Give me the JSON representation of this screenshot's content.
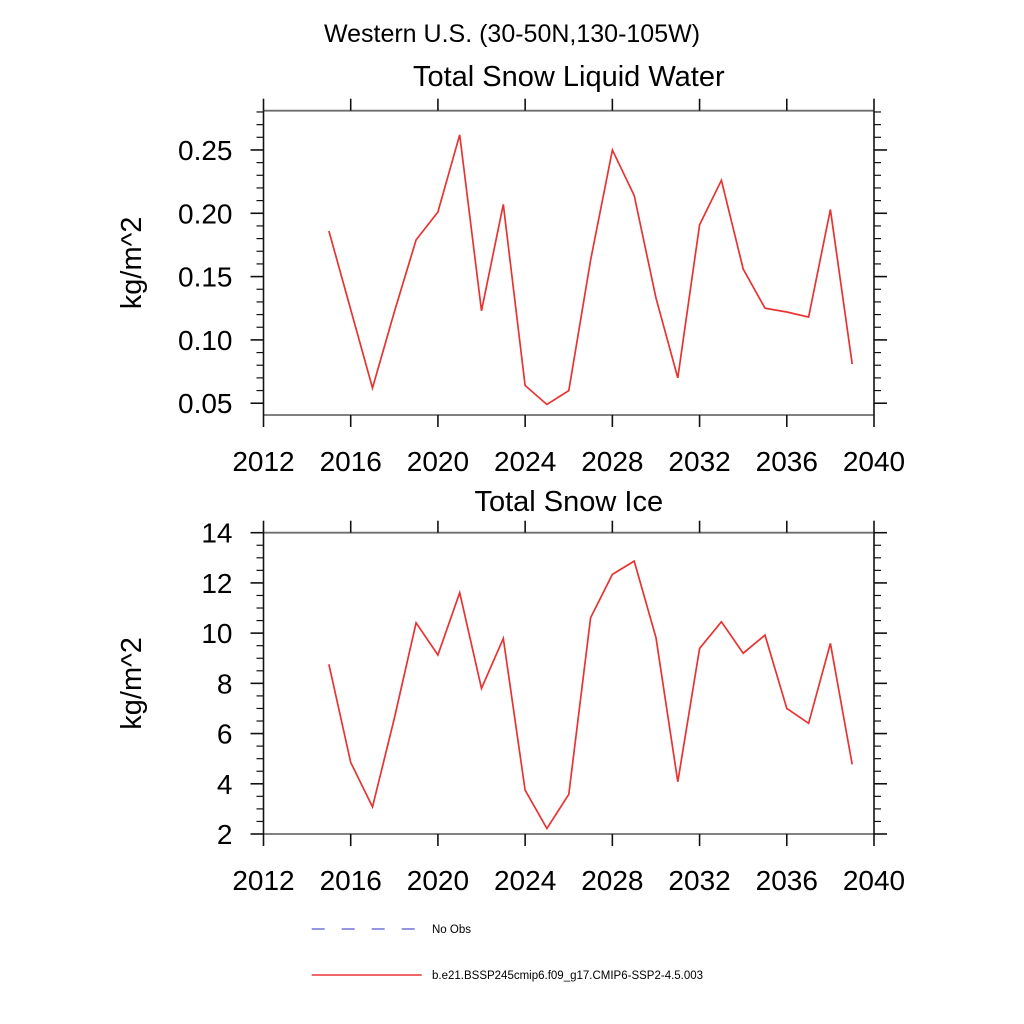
{
  "figure": {
    "main_title": "Western U.S. (30-50N,130-105W)",
    "background": "#ffffff",
    "frame_color": "#6f6f6f",
    "tick_color": "#111111",
    "text_color": "#000000"
  },
  "legend": {
    "items": [
      {
        "label": "No Obs",
        "line_style": "dashed",
        "color": "#7272d9"
      },
      {
        "label": "b.e21.BSSP245cmip6.f09_g17.CMIP6-SSP2-4.5.003",
        "line_style": "solid",
        "color": "#e83333"
      }
    ]
  },
  "chart_data": [
    {
      "type": "line",
      "title": "Total Snow Liquid Water",
      "ylabel": "kg/m^2",
      "xlabel": "",
      "grid": false,
      "legend_position": "below-figure",
      "xlim": [
        2012,
        2040
      ],
      "ylim": [
        0.0407,
        0.281
      ],
      "xticks": [
        2012,
        2016,
        2020,
        2024,
        2028,
        2032,
        2036,
        2040
      ],
      "yticks": [
        0.05,
        0.1,
        0.15,
        0.2,
        0.25
      ],
      "ytick_labels": [
        "0.05",
        "0.10",
        "0.15",
        "0.20",
        "0.25"
      ],
      "y_minor_step": 0.01,
      "x": [
        2015,
        2016,
        2017,
        2018,
        2019,
        2020,
        2021,
        2022,
        2023,
        2024,
        2025,
        2026,
        2027,
        2028,
        2029,
        2030,
        2031,
        2032,
        2033,
        2034,
        2035,
        2036,
        2037,
        2038,
        2039
      ],
      "series": [
        {
          "name": "b.e21.BSSP245cmip6.f09_g17.CMIP6-SSP2-4.5.003",
          "color": "#e83333",
          "values": [
            0.186,
            0.124,
            0.062,
            0.122,
            0.179,
            0.201,
            0.262,
            0.123,
            0.207,
            0.064,
            0.049,
            0.06,
            0.163,
            0.25,
            0.214,
            0.133,
            0.07,
            0.191,
            0.226,
            0.156,
            0.125,
            0.122,
            0.118,
            0.203,
            0.081
          ]
        }
      ]
    },
    {
      "type": "line",
      "title": "Total Snow Ice",
      "ylabel": "kg/m^2",
      "xlabel": "",
      "grid": false,
      "legend_position": "below-figure",
      "xlim": [
        2012,
        2040
      ],
      "ylim": [
        2,
        14
      ],
      "xticks": [
        2012,
        2016,
        2020,
        2024,
        2028,
        2032,
        2036,
        2040
      ],
      "yticks": [
        2,
        4,
        6,
        8,
        10,
        12,
        14
      ],
      "ytick_labels": [
        "2",
        "4",
        "6",
        "8",
        "10",
        "12",
        "14"
      ],
      "y_minor_step": 0.5,
      "x": [
        2015,
        2016,
        2017,
        2018,
        2019,
        2020,
        2021,
        2022,
        2023,
        2024,
        2025,
        2026,
        2027,
        2028,
        2029,
        2030,
        2031,
        2032,
        2033,
        2034,
        2035,
        2036,
        2037,
        2038,
        2039
      ],
      "series": [
        {
          "name": "b.e21.BSSP245cmip6.f09_g17.CMIP6-SSP2-4.5.003",
          "color": "#e83333",
          "values": [
            8.76,
            4.85,
            3.08,
            6.6,
            10.41,
            9.13,
            11.61,
            7.8,
            9.79,
            3.75,
            2.22,
            3.58,
            10.61,
            12.34,
            12.87,
            9.82,
            4.08,
            9.39,
            10.45,
            9.2,
            9.92,
            7.0,
            6.41,
            9.59,
            4.77
          ]
        }
      ]
    }
  ]
}
